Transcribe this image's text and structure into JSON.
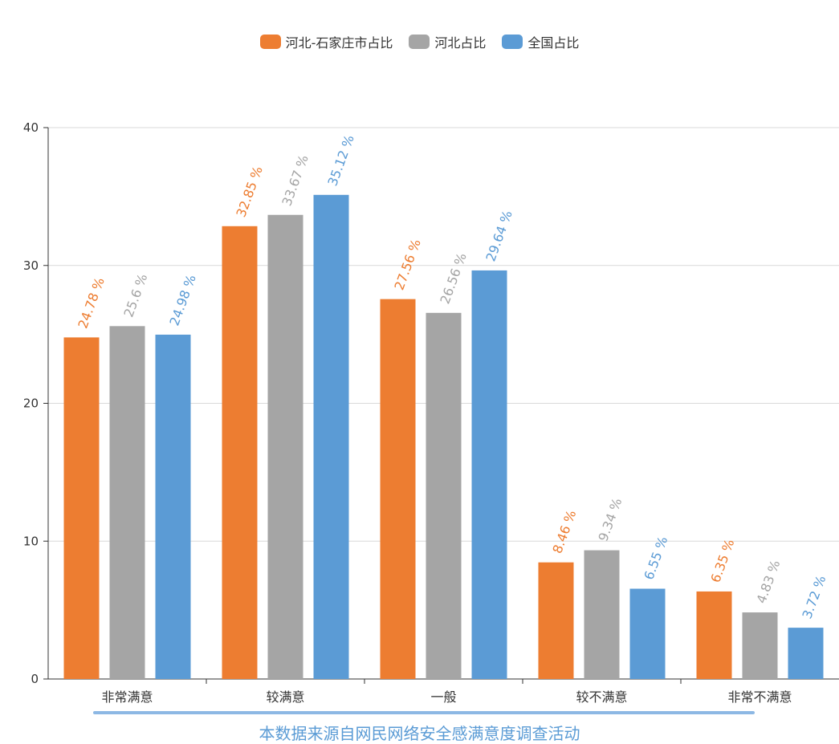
{
  "chart_data": {
    "type": "bar",
    "categories": [
      "非常满意",
      "较满意",
      "一般",
      "较不满意",
      "非常不满意"
    ],
    "series": [
      {
        "name": "河北-石家庄市占比",
        "color": "#ed7d31",
        "values": [
          24.78,
          32.85,
          27.56,
          8.46,
          6.35
        ],
        "labels": [
          "24.78 %",
          "32.85 %",
          "27.56 %",
          "8.46 %",
          "6.35 %"
        ]
      },
      {
        "name": "河北占比",
        "color": "#a5a5a5",
        "values": [
          25.6,
          33.67,
          26.56,
          9.34,
          4.83
        ],
        "labels": [
          "25.6 %",
          "33.67 %",
          "26.56 %",
          "9.34 %",
          "4.83 %"
        ]
      },
      {
        "name": "全国占比",
        "color": "#5b9bd5",
        "values": [
          24.98,
          35.12,
          29.64,
          6.55,
          3.72
        ],
        "labels": [
          "24.98 %",
          "35.12 %",
          "29.64 %",
          "6.55 %",
          "3.72 %"
        ]
      }
    ],
    "ylim": [
      0,
      40
    ],
    "yticks": [
      "0",
      "10",
      "20",
      "30",
      "40"
    ],
    "grid": true,
    "legend": "top-center"
  },
  "footer_note": "本数据来源自网民网络安全感满意度调查活动"
}
